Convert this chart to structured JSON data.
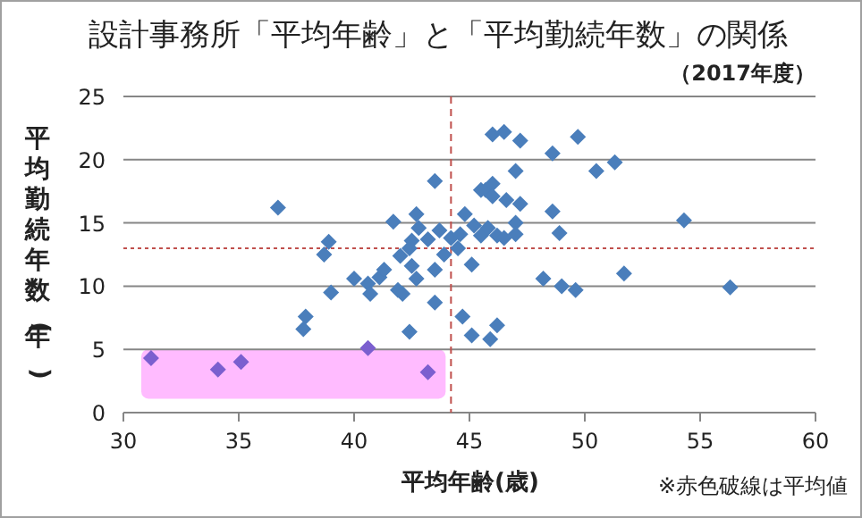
{
  "chart_data": {
    "type": "scatter",
    "title": "設計事務所「平均年齢」と「平均勤続年数」の関係",
    "subtitle": "（2017年度）",
    "xlabel": "平均年齢(歳)",
    "ylabel": "平均勤続年数(年)",
    "annotations": [
      "※赤色破線は平均値"
    ],
    "xlim": [
      30,
      60
    ],
    "xticks": [
      30,
      35,
      40,
      45,
      50,
      55,
      60
    ],
    "ylim": [
      0,
      25
    ],
    "yticks": [
      0,
      5,
      10,
      15,
      20,
      25
    ],
    "grid": "y",
    "marker": "diamond",
    "ref_lines": [
      {
        "axis": "x",
        "value": 44.2,
        "color": "#c0504d",
        "line_style": "dashed"
      },
      {
        "axis": "y",
        "value": 13,
        "color": "#c0504d",
        "line_style": "dotted"
      }
    ],
    "bands": [
      {
        "axis": "y",
        "from": 1.1,
        "to": 5,
        "color": "#ffbbff"
      }
    ],
    "series": [
      {
        "x": [
          31.2,
          34.1,
          35.1,
          36.7,
          37.8,
          37.9,
          38.7,
          38.9,
          39.0,
          40.0,
          40.6,
          40.6,
          40.7,
          41.1,
          41.3,
          41.7,
          41.9,
          42.1,
          42.0,
          42.4,
          42.4,
          42.5,
          42.5,
          42.7,
          42.7,
          42.8,
          43.2,
          43.2,
          43.5,
          43.5,
          43.5,
          43.7,
          43.9,
          44.2,
          44.5,
          44.6,
          44.8,
          44.7,
          45.1,
          45.2,
          45.1,
          45.5,
          45.8,
          45.5,
          45.7,
          46.0,
          46.0,
          46.0,
          45.9,
          46.2,
          46.2,
          46.5,
          46.5,
          46.6,
          47.0,
          47.0,
          47.0,
          47.2,
          47.2,
          48.2,
          48.6,
          48.6,
          48.9,
          49.0,
          49.6,
          49.7,
          50.5,
          51.3,
          51.7,
          54.3,
          56.3
        ],
        "values": [
          4.3,
          3.4,
          4.0,
          16.2,
          6.6,
          7.6,
          12.5,
          13.5,
          9.5,
          10.6,
          10.2,
          5.1,
          9.4,
          10.7,
          11.3,
          15.1,
          9.7,
          9.4,
          12.4,
          6.4,
          13.0,
          13.6,
          11.6,
          15.7,
          10.6,
          14.6,
          13.7,
          3.2,
          18.3,
          8.7,
          11.3,
          14.4,
          12.5,
          13.8,
          13.0,
          14.1,
          15.7,
          7.6,
          11.7,
          14.8,
          6.1,
          14.0,
          14.6,
          17.6,
          17.6,
          18.1,
          17.1,
          22.0,
          5.8,
          6.9,
          14.0,
          13.8,
          22.2,
          16.8,
          19.1,
          15.0,
          14.1,
          21.5,
          16.5,
          10.6,
          15.9,
          20.5,
          14.2,
          10.0,
          9.7,
          21.8,
          19.1,
          19.8,
          11.0,
          15.2,
          9.9
        ],
        "colors": [
          "#7b5fcf",
          "#7b5fcf",
          "#7b5fcf",
          "#4a7ebb",
          "#4a7ebb",
          "#4a7ebb",
          "#4a7ebb",
          "#4a7ebb",
          "#4a7ebb",
          "#4a7ebb",
          "#4a7ebb",
          "#7b5fcf",
          "#4a7ebb",
          "#4a7ebb",
          "#4a7ebb",
          "#4a7ebb",
          "#4a7ebb",
          "#4a7ebb",
          "#4a7ebb",
          "#4a7ebb",
          "#4a7ebb",
          "#4a7ebb",
          "#4a7ebb",
          "#4a7ebb",
          "#4a7ebb",
          "#4a7ebb",
          "#4a7ebb",
          "#7b5fcf",
          "#4a7ebb",
          "#4a7ebb",
          "#4a7ebb",
          "#4a7ebb",
          "#4a7ebb",
          "#4a7ebb",
          "#4a7ebb",
          "#4a7ebb",
          "#4a7ebb",
          "#4a7ebb",
          "#4a7ebb",
          "#4a7ebb",
          "#4a7ebb",
          "#4a7ebb",
          "#4a7ebb",
          "#4a7ebb",
          "#4a7ebb",
          "#4a7ebb",
          "#4a7ebb",
          "#4a7ebb",
          "#4a7ebb",
          "#4a7ebb",
          "#4a7ebb",
          "#4a7ebb",
          "#4a7ebb",
          "#4a7ebb",
          "#4a7ebb",
          "#4a7ebb",
          "#4a7ebb",
          "#4a7ebb",
          "#4a7ebb",
          "#4a7ebb",
          "#4a7ebb",
          "#4a7ebb",
          "#4a7ebb",
          "#4a7ebb",
          "#4a7ebb",
          "#4a7ebb",
          "#4a7ebb",
          "#4a7ebb",
          "#4a7ebb",
          "#4a7ebb",
          "#4a7ebb"
        ]
      }
    ]
  }
}
